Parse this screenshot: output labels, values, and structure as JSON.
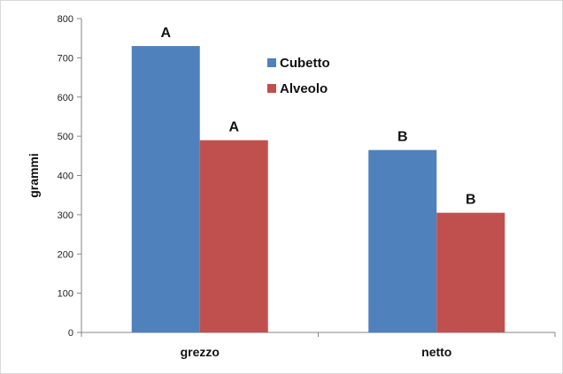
{
  "chart_data": {
    "type": "bar",
    "title": "",
    "xlabel": "",
    "ylabel": "grammi",
    "ylim": [
      0,
      800
    ],
    "yticks": [
      0,
      100,
      200,
      300,
      400,
      500,
      600,
      700,
      800
    ],
    "grid": false,
    "legend_position": "top-center",
    "categories": [
      "grezzo",
      "netto"
    ],
    "series": [
      {
        "name": "Cubetto",
        "color": "#4F81BD",
        "values": [
          730,
          465
        ],
        "data_labels": [
          "A",
          "B"
        ]
      },
      {
        "name": "Alveolo",
        "color": "#C0504D",
        "values": [
          490,
          305
        ],
        "data_labels": [
          "A",
          "B"
        ]
      }
    ]
  }
}
